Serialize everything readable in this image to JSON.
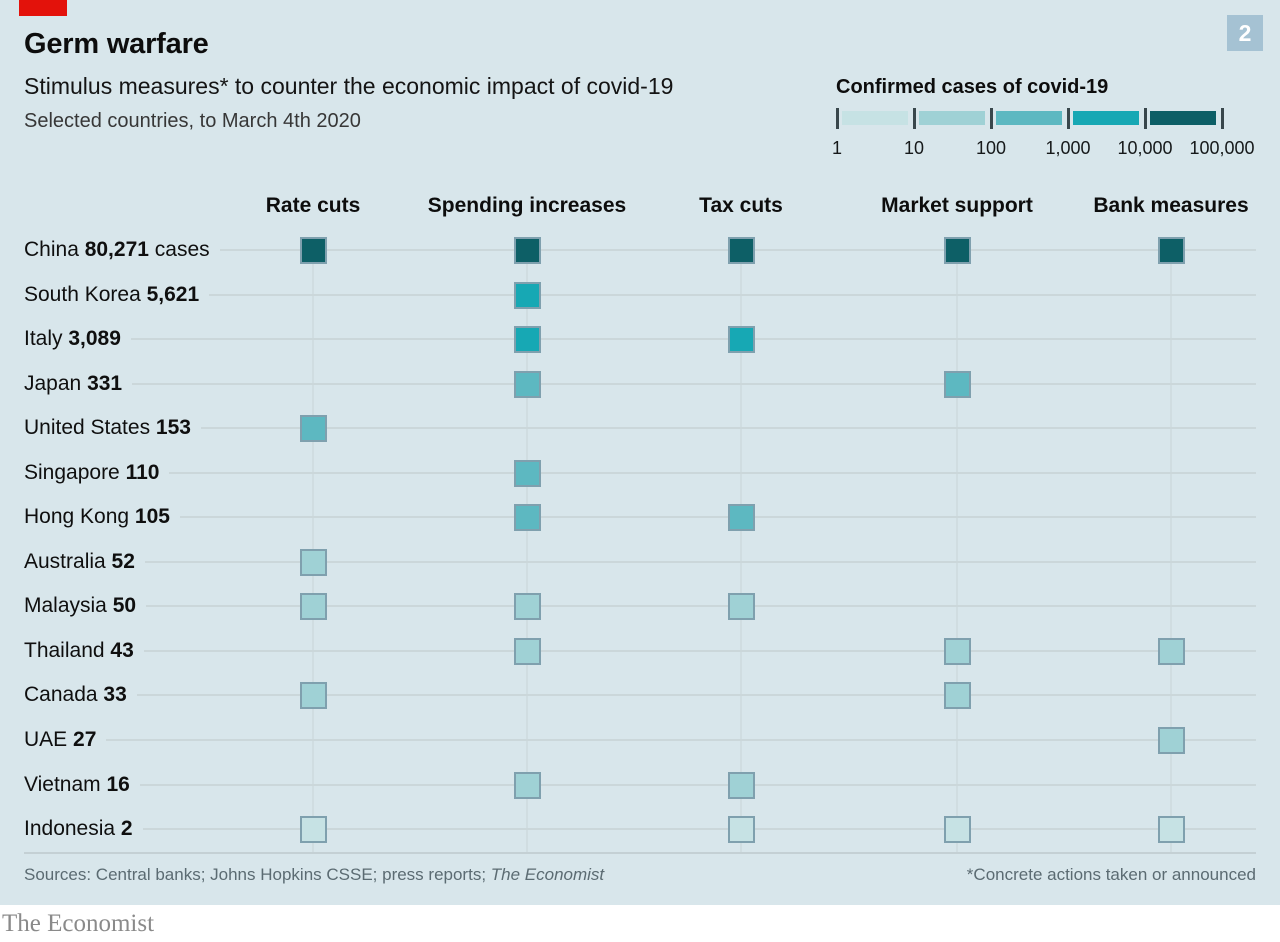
{
  "brand": {
    "wordmark": "The Economist",
    "badge": "2",
    "accent_red": "#e3120b",
    "badge_bg": "#a5c2d3",
    "plate_bg": "#d8e6eb"
  },
  "header": {
    "title": "Germ warfare",
    "subtitle": "Stimulus measures* to counter the economic impact of covid-19",
    "dateline": "Selected countries, to March 4th 2020"
  },
  "legend": {
    "title": "Confirmed cases of covid-19"
  },
  "footer": {
    "sources": "Sources: Central banks; Johns Hopkins CSSE; press reports; ",
    "sources_italic": "The Economist",
    "footnote": "*Concrete actions taken or announced"
  },
  "chart_data": {
    "type": "heatmap",
    "title": "Germ warfare",
    "subtitle": "Stimulus measures* to counter the economic impact of covid-19",
    "note": "Selected countries, to March 4th 2020",
    "columns": [
      "Rate cuts",
      "Spending increases",
      "Tax cuts",
      "Market support",
      "Bank measures"
    ],
    "rows": [
      {
        "country": "China",
        "cases": 80271,
        "cases_label": "80,271",
        "cases_suffix": " cases",
        "bucket": 5,
        "measures": [
          1,
          1,
          1,
          1,
          1
        ]
      },
      {
        "country": "South Korea",
        "cases": 5621,
        "cases_label": "5,621",
        "cases_suffix": "",
        "bucket": 4,
        "measures": [
          0,
          1,
          0,
          0,
          0
        ]
      },
      {
        "country": "Italy",
        "cases": 3089,
        "cases_label": "3,089",
        "cases_suffix": "",
        "bucket": 4,
        "measures": [
          0,
          1,
          1,
          0,
          0
        ]
      },
      {
        "country": "Japan",
        "cases": 331,
        "cases_label": "331",
        "cases_suffix": "",
        "bucket": 3,
        "measures": [
          0,
          1,
          0,
          1,
          0
        ]
      },
      {
        "country": "United States",
        "cases": 153,
        "cases_label": "153",
        "cases_suffix": "",
        "bucket": 3,
        "measures": [
          1,
          0,
          0,
          0,
          0
        ]
      },
      {
        "country": "Singapore",
        "cases": 110,
        "cases_label": "110",
        "cases_suffix": "",
        "bucket": 3,
        "measures": [
          0,
          1,
          0,
          0,
          0
        ]
      },
      {
        "country": "Hong Kong",
        "cases": 105,
        "cases_label": "105",
        "cases_suffix": "",
        "bucket": 3,
        "measures": [
          0,
          1,
          1,
          0,
          0
        ]
      },
      {
        "country": "Australia",
        "cases": 52,
        "cases_label": "52",
        "cases_suffix": "",
        "bucket": 2,
        "measures": [
          1,
          0,
          0,
          0,
          0
        ]
      },
      {
        "country": "Malaysia",
        "cases": 50,
        "cases_label": "50",
        "cases_suffix": "",
        "bucket": 2,
        "measures": [
          1,
          1,
          1,
          0,
          0
        ]
      },
      {
        "country": "Thailand",
        "cases": 43,
        "cases_label": "43",
        "cases_suffix": "",
        "bucket": 2,
        "measures": [
          0,
          1,
          0,
          1,
          1
        ]
      },
      {
        "country": "Canada",
        "cases": 33,
        "cases_label": "33",
        "cases_suffix": "",
        "bucket": 2,
        "measures": [
          1,
          0,
          0,
          1,
          0
        ]
      },
      {
        "country": "UAE",
        "cases": 27,
        "cases_label": "27",
        "cases_suffix": "",
        "bucket": 2,
        "measures": [
          0,
          0,
          0,
          0,
          1
        ]
      },
      {
        "country": "Vietnam",
        "cases": 16,
        "cases_label": "16",
        "cases_suffix": "",
        "bucket": 2,
        "measures": [
          0,
          1,
          1,
          0,
          0
        ]
      },
      {
        "country": "Indonesia",
        "cases": 2,
        "cases_label": "2",
        "cases_suffix": "",
        "bucket": 1,
        "measures": [
          1,
          0,
          1,
          1,
          1
        ]
      }
    ],
    "color_scale": {
      "label": "Confirmed cases of covid-19",
      "scale_type": "log",
      "breaks": [
        "1",
        "10",
        "100",
        "1,000",
        "10,000",
        "100,000"
      ],
      "colors": [
        "#c6e2e4",
        "#9fd1d5",
        "#5db8c1",
        "#17a8b4",
        "#0d5f66"
      ]
    },
    "legend_position": "top-right",
    "grid": true
  }
}
